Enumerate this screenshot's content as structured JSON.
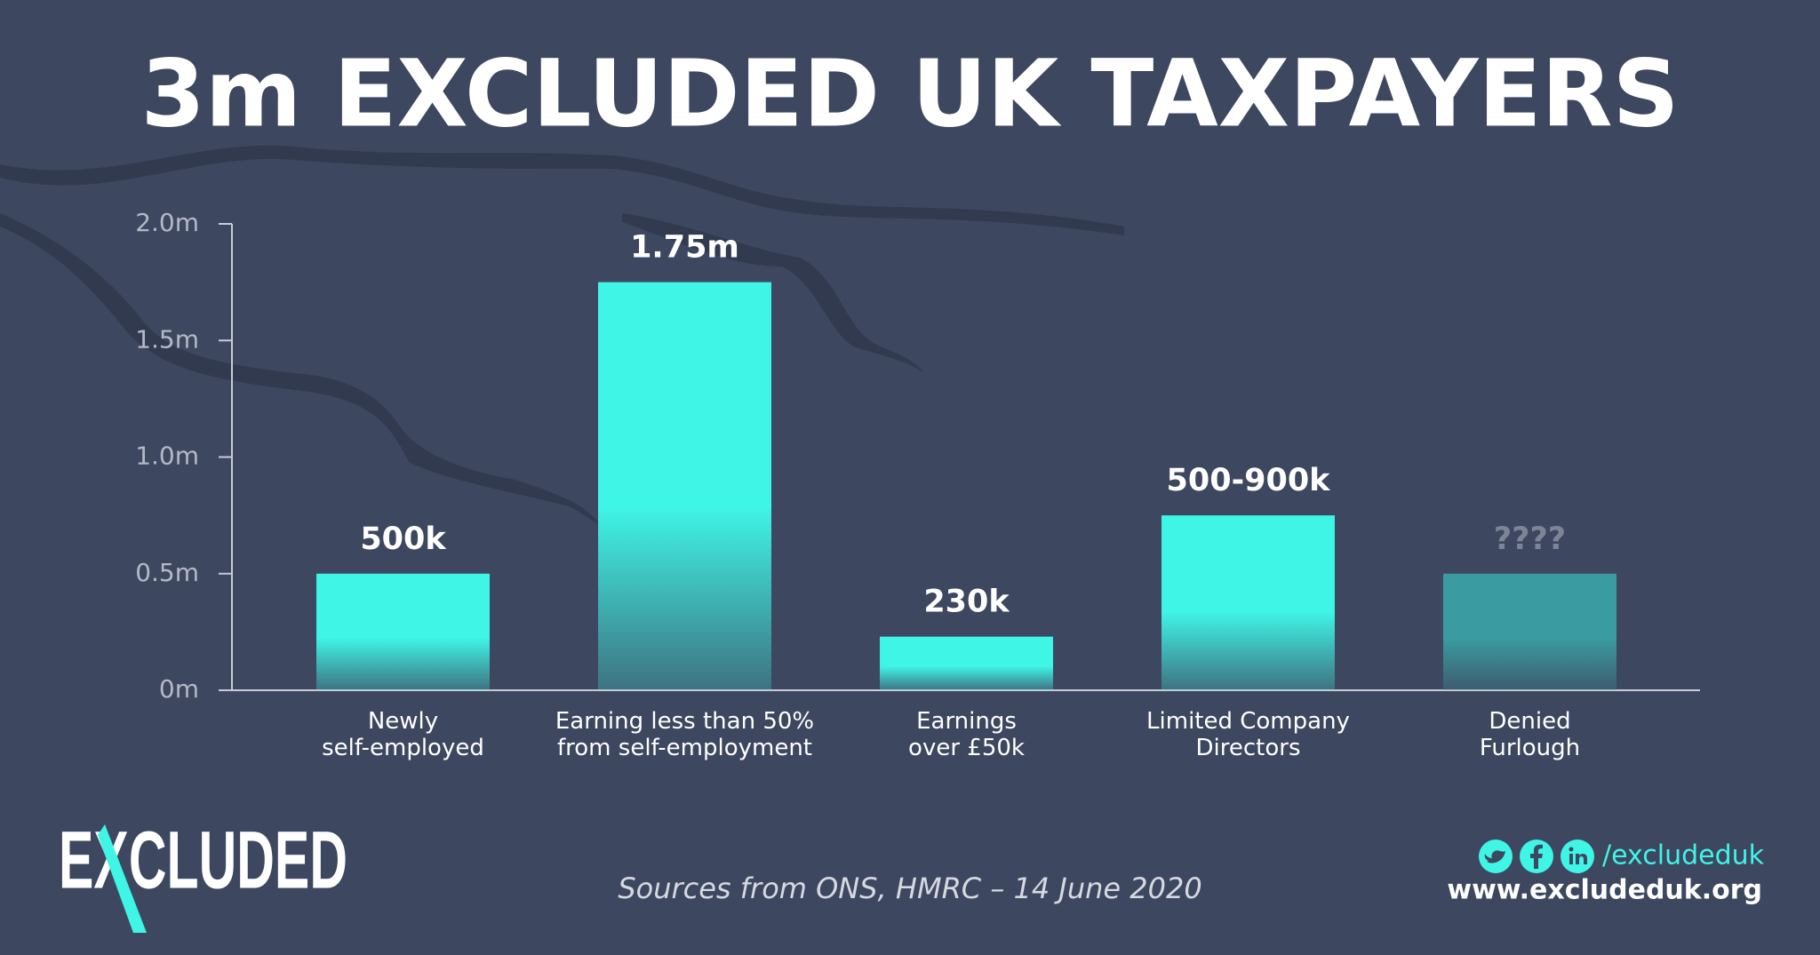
{
  "chart_data": {
    "type": "bar",
    "title": "3m EXCLUDED UK TAXPAYERS",
    "categories": [
      "Newly\nself-employed",
      "Earning less than 50%\nfrom self-employment",
      "Earnings\nover £50k",
      "Limited Company\nDirectors",
      "Denied\nFurlough"
    ],
    "values": [
      0.5,
      1.75,
      0.23,
      0.75,
      0.5
    ],
    "value_labels": [
      "500k",
      "1.75m",
      "230k",
      "500-900k",
      "????"
    ],
    "colors": [
      "#3ff5e6",
      "#3ff5e6",
      "#3ff5e6",
      "#3ff5e6",
      "#3a9ca0"
    ],
    "ylim": [
      0,
      2.0
    ],
    "yticks": [
      {
        "value": 0,
        "label": "0m"
      },
      {
        "value": 0.5,
        "label": "0.5m"
      },
      {
        "value": 1.0,
        "label": "1.0m"
      },
      {
        "value": 1.5,
        "label": "1.5m"
      },
      {
        "value": 2.0,
        "label": "2.0m"
      }
    ]
  },
  "footer": {
    "logo": "EXCLUDED",
    "source": "Sources from ONS, HMRC – 14 June 2020",
    "handle": "/excludeduk",
    "website": "www.excludeduk.org"
  }
}
